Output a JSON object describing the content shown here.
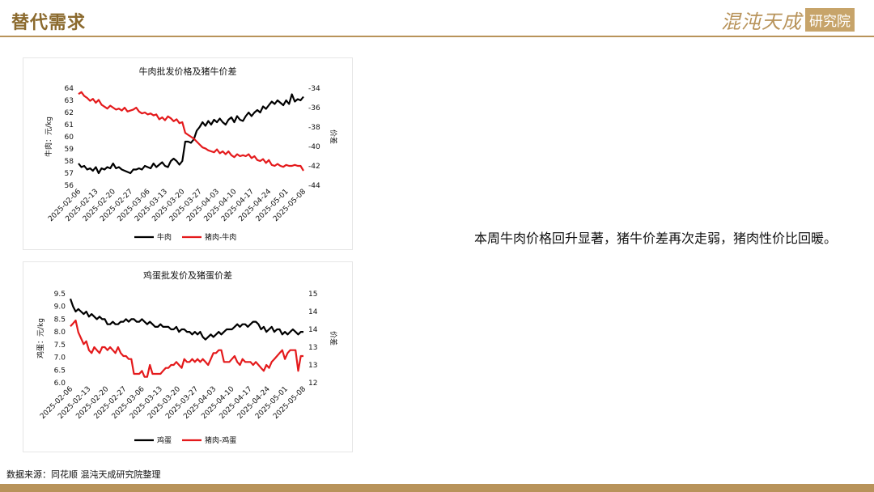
{
  "header": {
    "title": "替代需求",
    "logo_main": "混沌天成",
    "logo_box": "研究院"
  },
  "body_text": "本周牛肉价格回升显著，猪牛价差再次走弱，猪肉性价比回暖。",
  "source": "数据来源：同花顺 混沌天成研究院整理",
  "colors": {
    "primary_series": "#000000",
    "secondary_series": "#e41a1c",
    "brand": "#b8935a"
  },
  "chart_data": [
    {
      "type": "line",
      "title": "牛肉批发价格及猪牛价差",
      "ylabel_left": "牛肉：元/kg",
      "ylabel_right": "价差",
      "ylim_left": [
        56,
        64
      ],
      "ylim_right": [
        -44,
        -34
      ],
      "left_ticks": [
        "56",
        "57",
        "58",
        "59",
        "60",
        "61",
        "62",
        "63",
        "64"
      ],
      "right_ticks": [
        "-44",
        "-42",
        "-40",
        "-38",
        "-36",
        "-34"
      ],
      "x_ticks": [
        "2025-02-06",
        "2025-02-13",
        "2025-02-20",
        "2025-02-27",
        "2025-03-06",
        "2025-03-13",
        "2025-03-20",
        "2025-03-27",
        "2025-04-03",
        "2025-04-10",
        "2025-04-17",
        "2025-04-24",
        "2025-05-01",
        "2025-05-08"
      ],
      "grid": false,
      "legend_position": "bottom",
      "series": [
        {
          "name": "牛肉",
          "axis": "left",
          "values": [
            57.8,
            57.5,
            57.6,
            57.3,
            57.4,
            57.2,
            57.5,
            57.0,
            57.4,
            57.3,
            57.5,
            57.4,
            57.8,
            57.4,
            57.5,
            57.3,
            57.2,
            57.1,
            57.0,
            57.3,
            57.3,
            57.4,
            57.3,
            57.6,
            57.5,
            57.4,
            57.8,
            57.5,
            57.7,
            57.9,
            57.6,
            57.5,
            58.0,
            58.2,
            58.0,
            57.7,
            58.0,
            59.6,
            59.6,
            59.5,
            59.8,
            60.5,
            60.8,
            61.2,
            60.9,
            61.3,
            61.0,
            61.4,
            61.2,
            61.5,
            61.2,
            61.0,
            61.4,
            61.6,
            61.2,
            61.7,
            61.4,
            61.3,
            61.7,
            62.0,
            61.7,
            62.0,
            62.2,
            62.0,
            62.5,
            62.3,
            62.6,
            62.9,
            62.7,
            63.0,
            62.8,
            62.6,
            63.0,
            62.7,
            63.5,
            62.9,
            63.1,
            63.0,
            63.3
          ]
        },
        {
          "name": "猪肉-牛肉",
          "axis": "right",
          "values": [
            -34.6,
            -34.4,
            -34.8,
            -35.0,
            -35.3,
            -35.1,
            -35.5,
            -35.2,
            -35.7,
            -35.9,
            -36.1,
            -35.8,
            -36.0,
            -36.2,
            -36.1,
            -36.3,
            -36.0,
            -36.4,
            -36.3,
            -36.2,
            -36.0,
            -36.4,
            -36.6,
            -36.5,
            -36.7,
            -36.6,
            -36.8,
            -36.7,
            -37.2,
            -37.0,
            -37.3,
            -36.9,
            -37.1,
            -37.4,
            -37.2,
            -37.6,
            -37.5,
            -38.6,
            -38.8,
            -39.0,
            -39.2,
            -39.5,
            -39.8,
            -40.1,
            -40.2,
            -40.4,
            -40.5,
            -40.6,
            -40.3,
            -40.7,
            -40.5,
            -40.8,
            -40.5,
            -40.9,
            -41.1,
            -40.8,
            -41.0,
            -40.9,
            -41.0,
            -40.8,
            -41.2,
            -41.0,
            -41.4,
            -41.5,
            -41.3,
            -41.7,
            -41.4,
            -41.9,
            -42.0,
            -41.8,
            -42.0,
            -42.1,
            -41.9,
            -42.0,
            -42.0,
            -41.9,
            -42.0,
            -42.0,
            -42.5
          ]
        }
      ]
    },
    {
      "type": "line",
      "title": "鸡蛋批发价及猪蛋价差",
      "ylabel_left": "鸡蛋：元/kg",
      "ylabel_right": "价差",
      "ylim_left": [
        6.0,
        9.5
      ],
      "ylim_right": [
        12,
        15
      ],
      "left_ticks": [
        "6.0",
        "6.5",
        "7.0",
        "7.5",
        "8.0",
        "8.5",
        "9.0",
        "9.5"
      ],
      "right_ticks": [
        "12",
        "13",
        "13",
        "14",
        "14",
        "15"
      ],
      "x_ticks": [
        "2025-02-06",
        "2025-02-13",
        "2025-02-20",
        "2025-02-27",
        "2025-03-06",
        "2025-03-13",
        "2025-03-20",
        "2025-03-27",
        "2025-04-03",
        "2025-04-10",
        "2025-04-17",
        "2025-04-24",
        "2025-05-01",
        "2025-05-08"
      ],
      "grid": false,
      "legend_position": "bottom",
      "series": [
        {
          "name": "鸡蛋",
          "axis": "left",
          "values": [
            9.3,
            9.0,
            8.8,
            8.9,
            8.8,
            8.7,
            8.8,
            8.6,
            8.7,
            8.6,
            8.5,
            8.6,
            8.5,
            8.5,
            8.3,
            8.3,
            8.4,
            8.3,
            8.3,
            8.4,
            8.4,
            8.5,
            8.4,
            8.5,
            8.5,
            8.4,
            8.4,
            8.5,
            8.4,
            8.3,
            8.4,
            8.3,
            8.2,
            8.2,
            8.3,
            8.2,
            8.2,
            8.2,
            8.1,
            8.1,
            8.2,
            8.0,
            8.1,
            8.1,
            8.0,
            8.0,
            7.9,
            8.0,
            7.9,
            8.0,
            7.8,
            7.7,
            7.8,
            7.9,
            7.8,
            7.9,
            8.0,
            7.9,
            8.0,
            8.1,
            8.1,
            8.1,
            8.2,
            8.3,
            8.2,
            8.3,
            8.3,
            8.2,
            8.3,
            8.4,
            8.4,
            8.3,
            8.1,
            8.2,
            8.0,
            8.1,
            8.2,
            8.0,
            8.1,
            8.1,
            7.9,
            8.0,
            7.9,
            8.0,
            8.1,
            8.0,
            7.9,
            8.0,
            8.0
          ]
        },
        {
          "name": "猪肉-鸡蛋",
          "axis": "right",
          "values": [
            13.9,
            14.0,
            14.1,
            13.7,
            13.5,
            13.3,
            13.4,
            13.1,
            13.0,
            13.2,
            13.1,
            13.0,
            13.2,
            13.2,
            13.1,
            13.2,
            13.1,
            13.0,
            13.2,
            13.0,
            12.9,
            12.9,
            12.8,
            12.8,
            12.3,
            12.3,
            12.3,
            12.4,
            12.2,
            12.2,
            12.6,
            12.3,
            12.3,
            12.3,
            12.3,
            12.4,
            12.5,
            12.5,
            12.6,
            12.6,
            12.7,
            12.6,
            12.5,
            12.8,
            12.7,
            12.7,
            12.8,
            12.7,
            12.8,
            12.7,
            12.8,
            12.7,
            12.6,
            12.8,
            13.0,
            13.0,
            13.1,
            13.1,
            12.7,
            12.7,
            12.7,
            12.8,
            12.9,
            12.7,
            12.6,
            12.8,
            12.7,
            12.7,
            12.7,
            12.6,
            12.7,
            12.6,
            12.5,
            12.4,
            12.6,
            12.5,
            12.7,
            12.8,
            12.9,
            13.0,
            13.1,
            12.8,
            13.0,
            13.1,
            13.1,
            13.1,
            12.4,
            12.9,
            12.9
          ]
        }
      ]
    }
  ],
  "legend_labels": {
    "c1_s1": "牛肉",
    "c1_s2": "猪肉-牛肉",
    "c2_s1": "鸡蛋",
    "c2_s2": "猪肉-鸡蛋"
  }
}
